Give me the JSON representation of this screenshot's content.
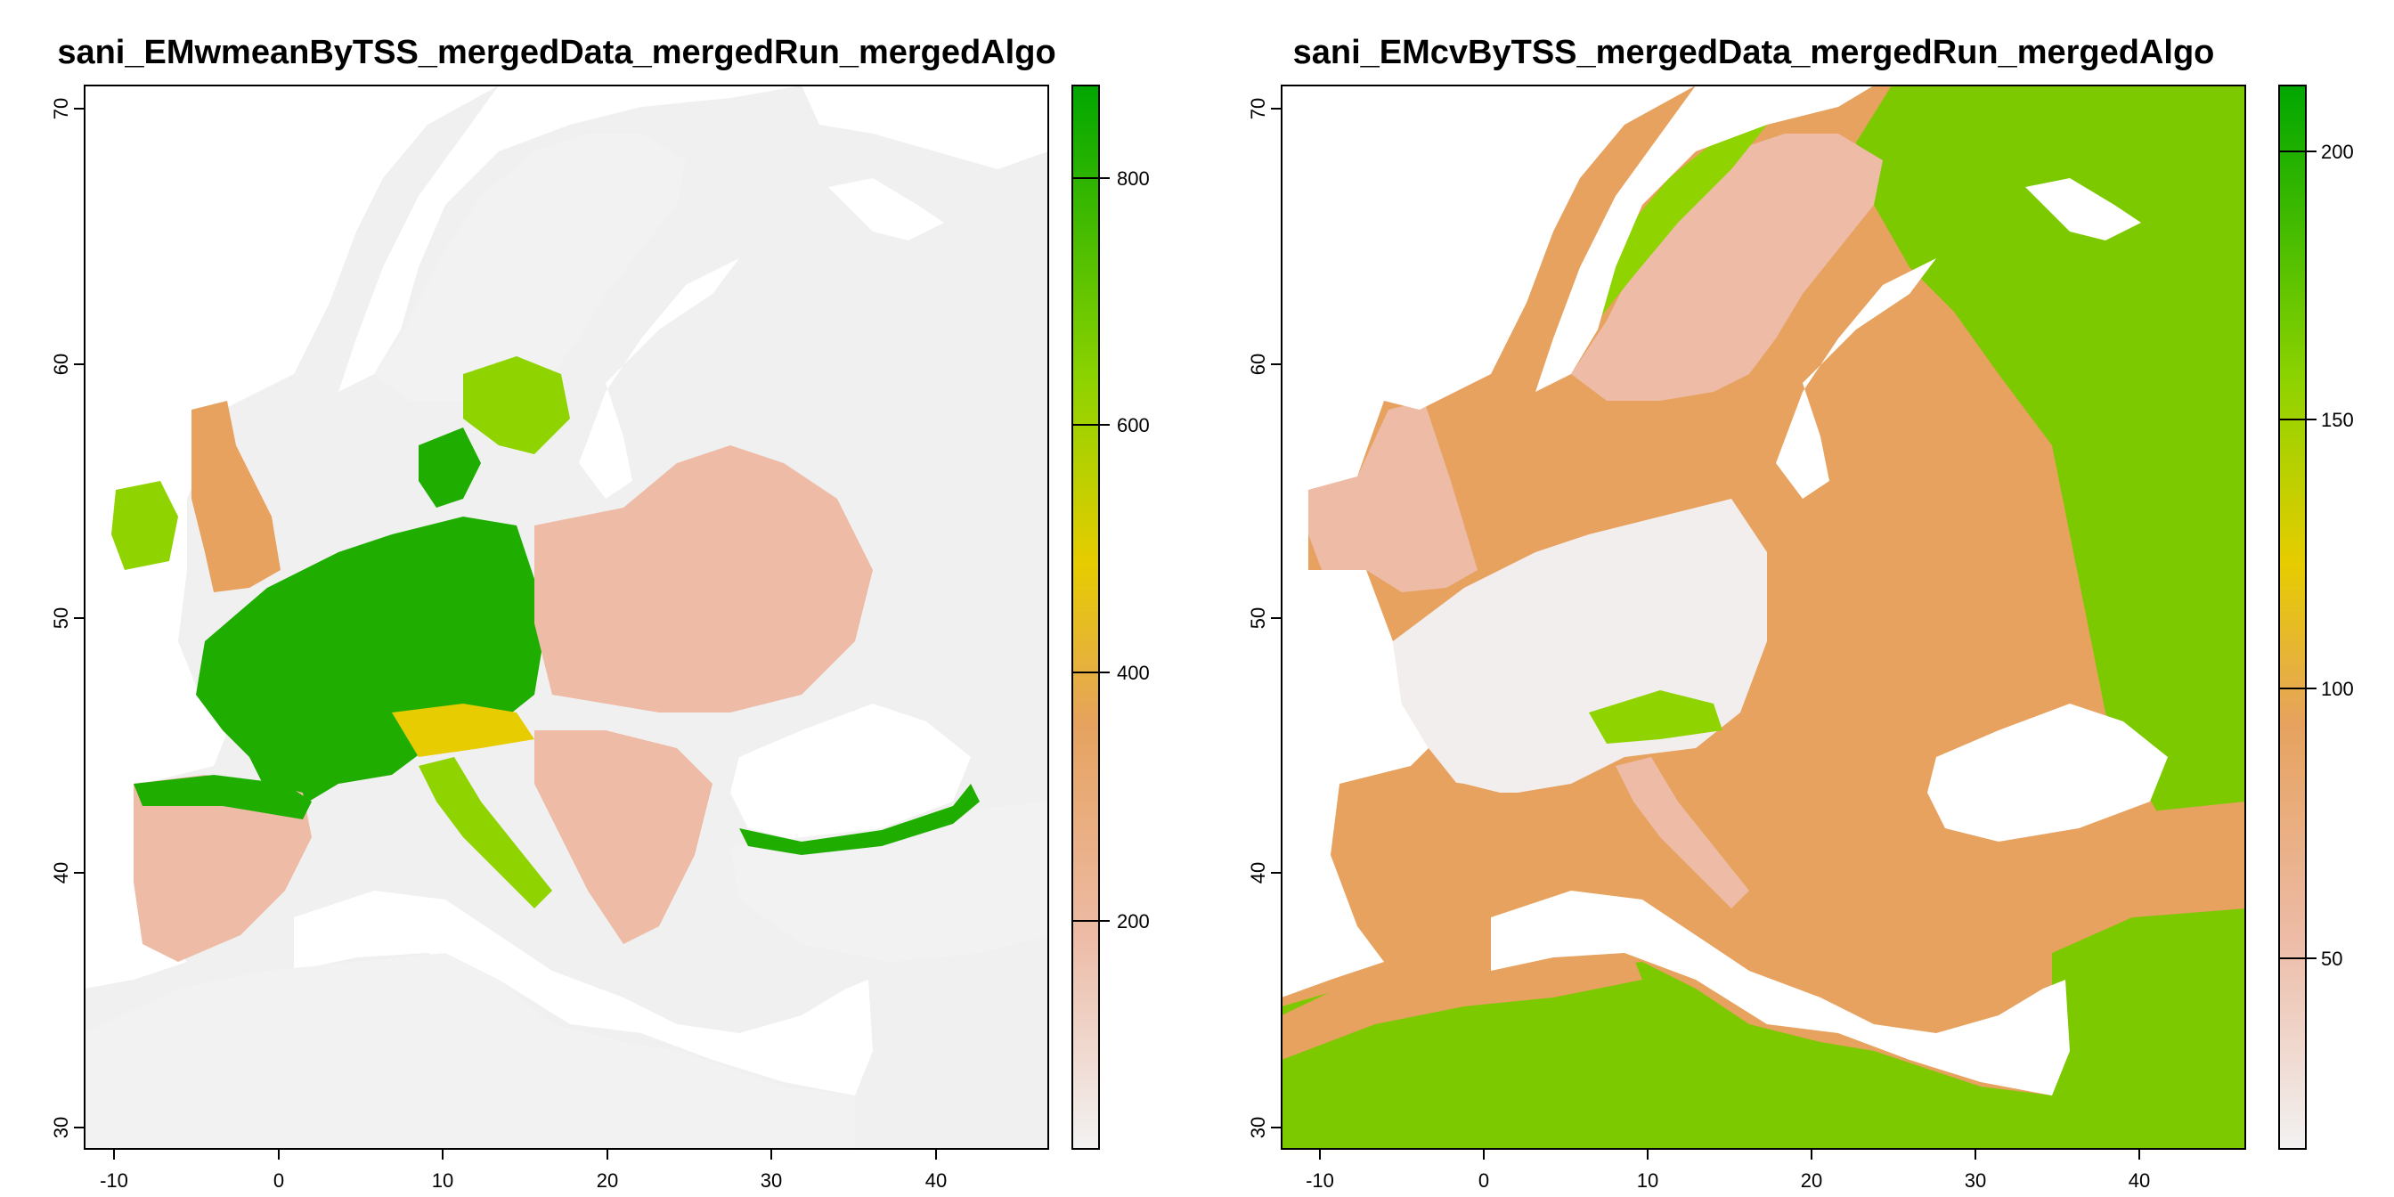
{
  "maps": [
    {
      "title": "sani_EMwmeanByTSS_mergedData_mergedRun_mergedAlgo",
      "x_ticks": [
        "-10",
        "0",
        "10",
        "20",
        "30",
        "40"
      ],
      "y_ticks": [
        "30",
        "40",
        "50",
        "60",
        "70"
      ],
      "legend": {
        "range": [
          0,
          870
        ],
        "ticks": [
          "200",
          "400",
          "600",
          "800"
        ],
        "colors": [
          "#f2f2f2",
          "#edbba6",
          "#e6a25e",
          "#e6cc00",
          "#8fd300",
          "#00a600"
        ]
      }
    },
    {
      "title": "sani_EMcvByTSS_mergedData_mergedRun_mergedAlgo",
      "x_ticks": [
        "-10",
        "0",
        "10",
        "20",
        "30",
        "40"
      ],
      "y_ticks": [
        "30",
        "40",
        "50",
        "60",
        "70"
      ],
      "legend": {
        "range": [
          10,
          212
        ],
        "ticks": [
          "50",
          "100",
          "150",
          "200"
        ],
        "colors": [
          "#f2f2f2",
          "#edbba6",
          "#e6a25e",
          "#e6cc00",
          "#8fd300",
          "#00a600"
        ]
      }
    }
  ],
  "colors": {
    "background": "#f0f0f0",
    "low": "#f2f2f2",
    "pink": "#edbba6",
    "orange": "#e6a25e",
    "yellow": "#e6cc00",
    "lime": "#8fd300",
    "green": "#00a600"
  }
}
